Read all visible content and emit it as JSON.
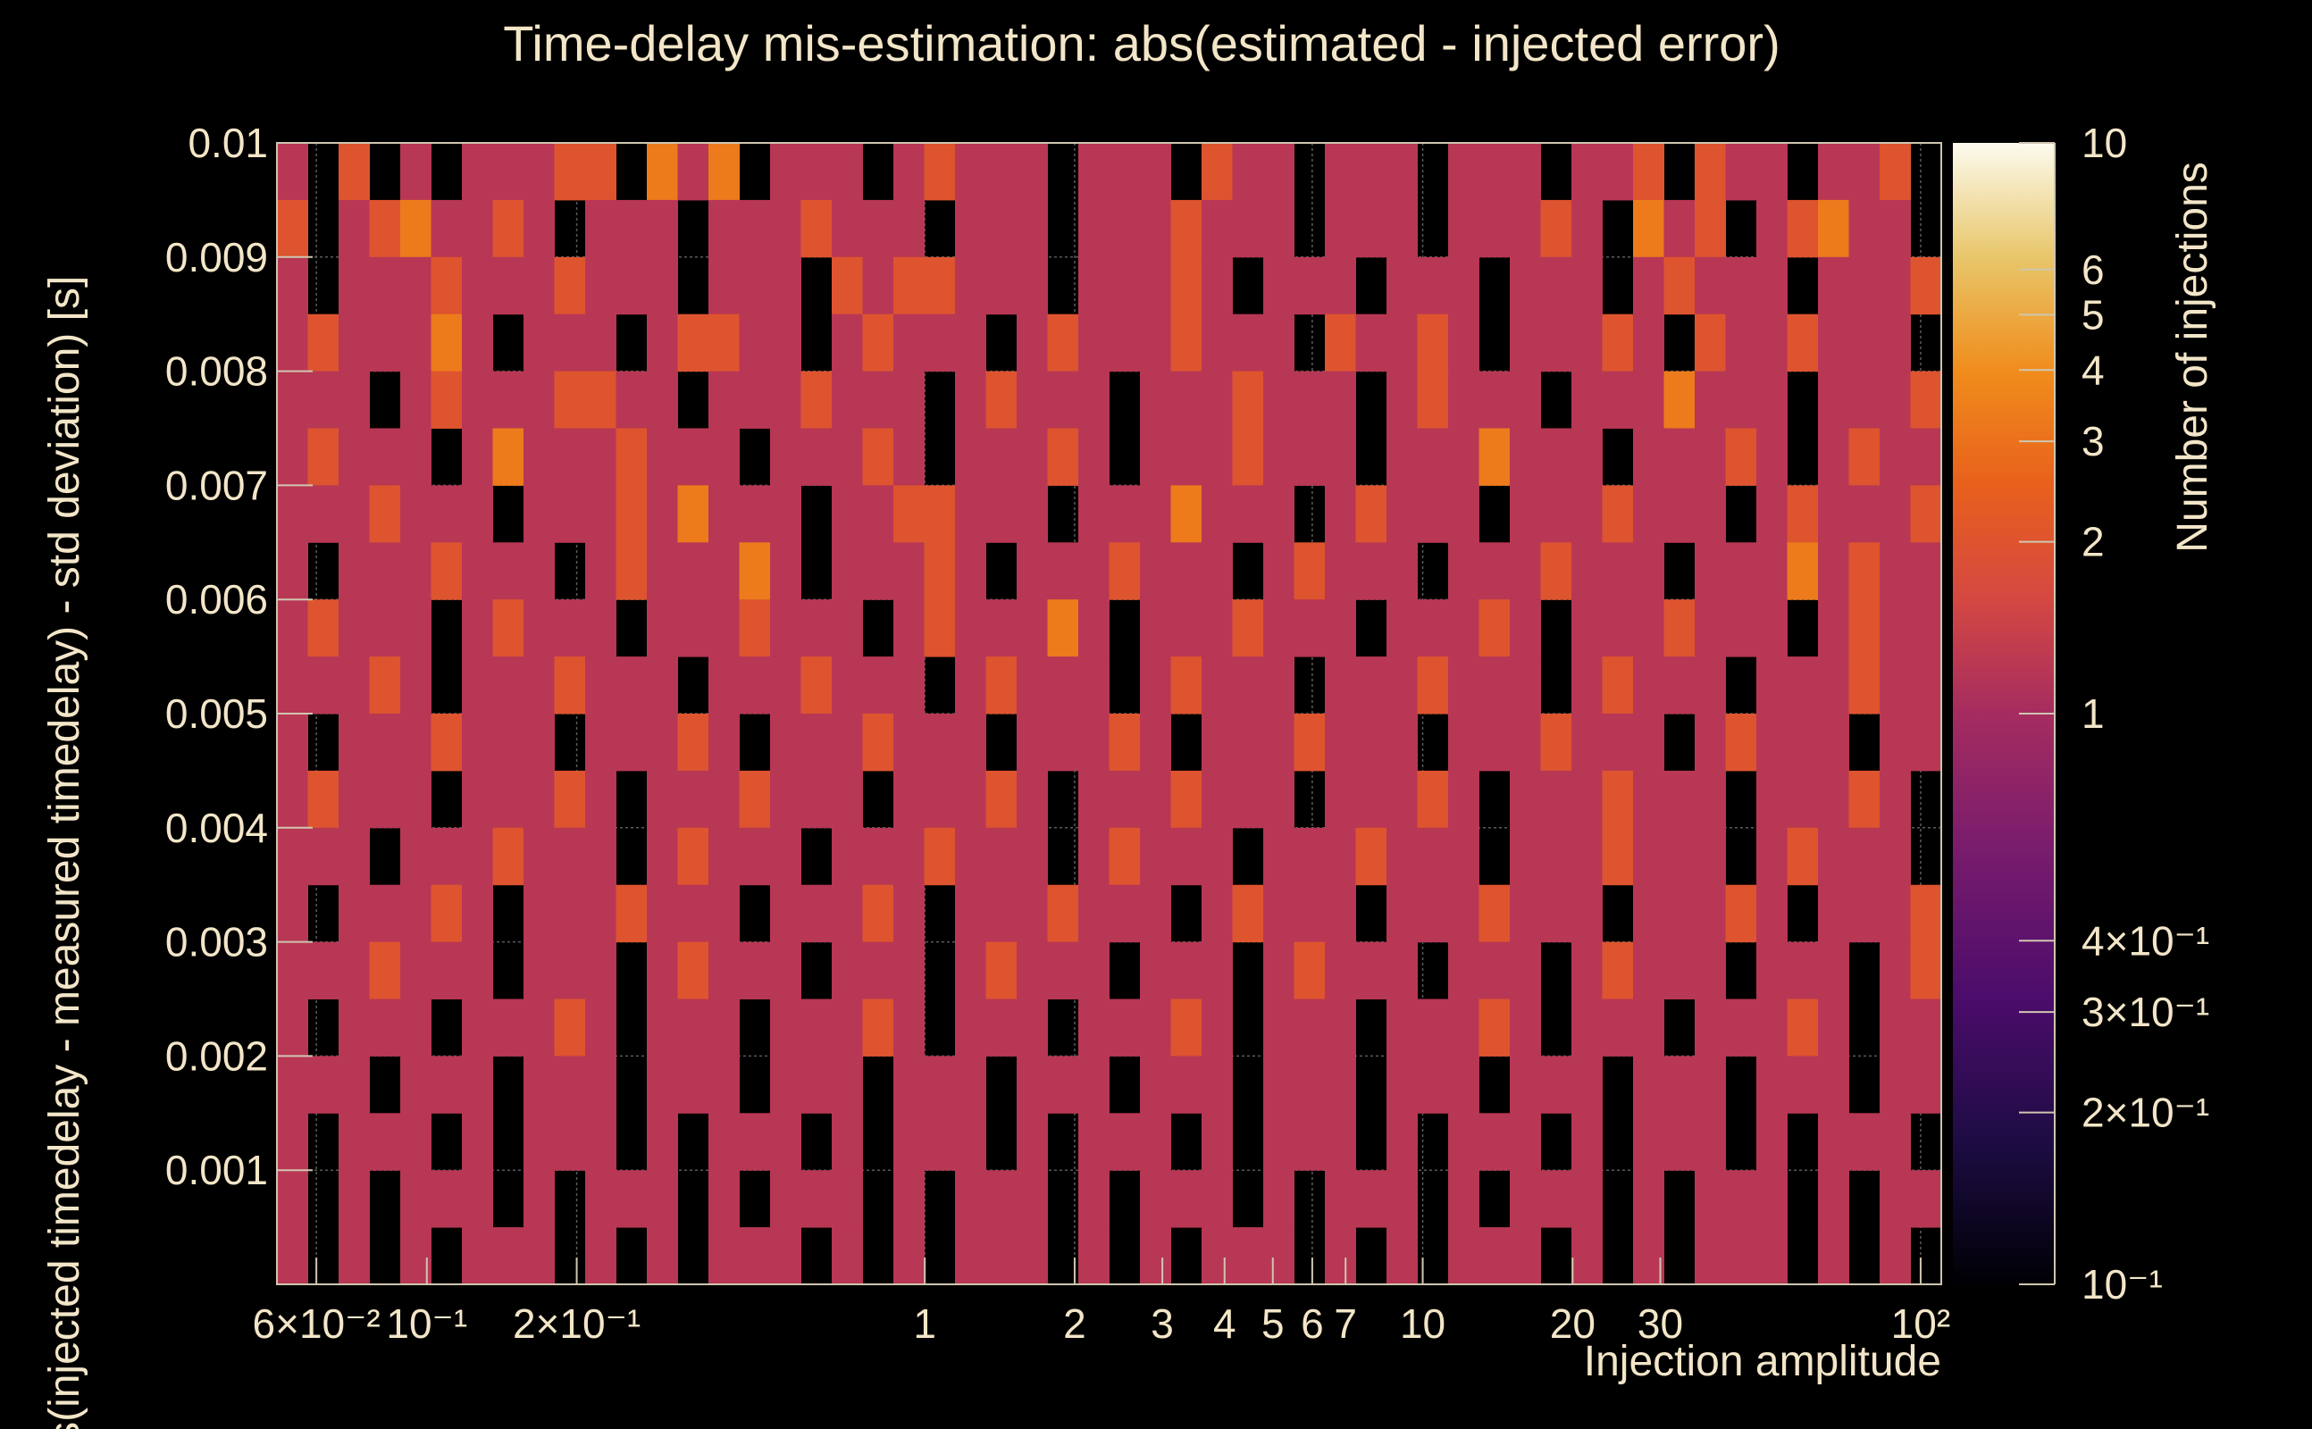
{
  "chart_data": {
    "type": "heatmap",
    "title": "Time-delay mis-estimation: abs(estimated - injected error)",
    "xlabel": "Injection amplitude",
    "ylabel": "abs(injected timedelay - measured timedelay) - std deviation) [s]",
    "zlabel": "Number of injections",
    "x_scale": "log",
    "xlim": [
      0.05,
      110
    ],
    "ylim": [
      0,
      0.01
    ],
    "z_scale": "log",
    "zlim": [
      0.1,
      10
    ],
    "x_ticks": [
      {
        "value": 0.06,
        "label": "6×10⁻²"
      },
      {
        "value": 0.1,
        "label": "10⁻¹"
      },
      {
        "value": 0.2,
        "label": "2×10⁻¹"
      },
      {
        "value": 1,
        "label": "1"
      },
      {
        "value": 2,
        "label": "2"
      },
      {
        "value": 3,
        "label": "3"
      },
      {
        "value": 4,
        "label": "4"
      },
      {
        "value": 5,
        "label": "5"
      },
      {
        "value": 6,
        "label": "6"
      },
      {
        "value": 7,
        "label": "7"
      },
      {
        "value": 10,
        "label": "10"
      },
      {
        "value": 20,
        "label": "20"
      },
      {
        "value": 30,
        "label": "30"
      },
      {
        "value": 100,
        "label": "10²"
      }
    ],
    "y_ticks": [
      {
        "value": 0.001,
        "label": "0.001"
      },
      {
        "value": 0.002,
        "label": "0.002"
      },
      {
        "value": 0.003,
        "label": "0.003"
      },
      {
        "value": 0.004,
        "label": "0.004"
      },
      {
        "value": 0.005,
        "label": "0.005"
      },
      {
        "value": 0.006,
        "label": "0.006"
      },
      {
        "value": 0.007,
        "label": "0.007"
      },
      {
        "value": 0.008,
        "label": "0.008"
      },
      {
        "value": 0.009,
        "label": "0.009"
      },
      {
        "value": 0.01,
        "label": "0.01"
      }
    ],
    "z_ticks": [
      {
        "value": 10,
        "label": "10"
      },
      {
        "value": 6,
        "label": "6"
      },
      {
        "value": 5,
        "label": "5"
      },
      {
        "value": 4,
        "label": "4"
      },
      {
        "value": 3,
        "label": "3"
      },
      {
        "value": 2,
        "label": "2"
      },
      {
        "value": 1,
        "label": "1"
      },
      {
        "value": 0.4,
        "label": "4×10⁻¹"
      },
      {
        "value": 0.3,
        "label": "3×10⁻¹"
      },
      {
        "value": 0.2,
        "label": "2×10⁻¹"
      },
      {
        "value": 0.1,
        "label": "10⁻¹"
      }
    ],
    "grid": true,
    "colormap": "inferno",
    "x_bins": 54,
    "y_bins_main": 20,
    "cells_rle": [
      "1,0,2,0,1,0,1,1,1,2,2,0,3,1,3,0,1,1,1,0,1,2,1,1,1,0,1,1,1,0,2,1,1,0,1,1,1,0,1,1,1,0,1,1,2,0,2,1,1,0,1,1,2,0",
      "2,0,1,2,3,1,1,2,1,0,1,1,1,0,1,1,1,2,1,1,1,0,1,1,1,0,1,1,1,2,1,1,1,0,1,1,1,0,1,1,1,2,1,0,3,1,2,0,1,2,3,1,1,0",
      "1,0,1,1,1,2,1,1,1,2,1,1,1,0,1,1,1,0,2,1,2,2,1,1,1,0,1,1,1,2,1,0,1,1,1,0,1,1,1,0,1,1,1,0,1,2,1,1,1,0,1,1,1,2",
      "1,2,1,1,1,3,1,0,1,1,1,0,1,2,2,1,1,0,1,2,1,1,1,0,1,2,1,1,1,2,1,1,1,0,2,1,1,2,1,0,1,1,1,2,1,0,2,1,1,2,1,1,1,0",
      "1,1,1,0,1,2,1,1,1,2,2,1,1,0,1,1,1,2,1,1,1,0,1,2,1,1,1,0,1,1,1,2,1,1,1,0,1,2,1,1,1,0,1,1,1,3,1,1,1,0,1,1,1,2",
      "1,2,1,1,1,0,1,3,1,1,1,2,1,1,1,0,1,1,1,2,1,0,1,1,1,2,1,0,1,1,1,2,1,1,1,0,1,1,1,3,1,1,1,0,1,1,1,2,1,0,1,2,1,1",
      "1,1,1,2,1,1,1,0,1,1,1,2,1,3,1,1,1,0,1,1,2,2,1,1,1,0,1,1,1,3,1,1,1,0,1,2,1,1,1,0,1,1,1,2,1,1,1,0,1,2,1,1,1,2",
      "1,0,1,1,1,2,1,1,1,0,1,2,1,1,1,3,1,0,1,1,1,2,1,0,1,1,1,2,1,1,1,0,1,2,1,1,1,0,1,1,1,2,1,1,1,0,1,1,1,3,1,2,1,1",
      "1,2,1,1,1,0,1,2,1,1,1,0,1,1,1,2,1,1,1,0,1,2,1,1,1,3,1,0,1,1,1,2,1,1,1,0,1,1,1,2,1,0,1,1,1,2,1,1,1,0,1,2,1,1",
      "1,1,1,2,1,0,1,1,1,2,1,1,1,0,1,1,1,2,1,1,1,0,1,2,1,1,1,0,1,2,1,1,1,0,1,1,1,2,1,1,1,0,1,2,1,1,1,0,1,1,1,2,1,1",
      "1,0,1,1,1,2,1,1,1,0,1,1,1,2,1,0,1,1,1,2,1,1,1,0,1,1,1,2,1,0,1,1,1,2,1,1,1,0,1,1,1,2,1,1,1,0,1,2,1,1,1,0,1,1",
      "1,2,1,1,1,0,1,1,1,2,1,0,1,1,1,2,1,1,1,0,1,1,1,2,1,0,1,1,1,2,1,1,1,0,1,1,1,2,1,0,1,1,1,2,1,1,1,0,1,1,1,2,1,0",
      "1,1,1,0,1,1,1,2,1,1,1,0,1,2,1,1,1,0,1,1,1,2,1,1,1,0,1,2,1,1,1,0,1,1,1,2,1,1,1,0,1,1,1,2,1,1,1,0,1,2,1,1,1,0",
      "1,0,1,1,1,2,1,0,1,1,1,2,1,1,1,0,1,1,1,2,1,0,1,1,1,2,1,1,1,0,1,2,1,1,1,0,1,1,1,2,1,1,1,0,1,1,1,2,1,0,1,1,1,2",
      "1,1,1,2,1,1,1,0,1,1,1,0,1,2,1,1,1,0,1,1,1,0,1,2,1,1,1,0,1,1,1,0,1,2,1,1,1,0,1,1,1,0,1,2,1,1,1,0,1,1,1,0,1,2",
      "1,0,1,1,1,0,1,1,1,2,1,0,1,1,1,0,1,1,1,2,1,0,1,1,1,0,1,1,1,2,1,0,1,1,1,0,1,1,1,2,1,0,1,1,1,0,1,1,1,2,1,0,1,1",
      "1,1,1,0,1,1,1,0,1,1,1,0,1,1,1,0,1,1,1,0,1,1,1,0,1,1,1,0,1,1,1,0,1,1,1,0,1,1,1,0,1,1,1,0,1,1,1,0,1,1,1,0,1,1",
      "1,0,1,1,1,0,1,0,1,1,1,0,1,0,1,1,1,0,1,0,1,1,1,0,1,0,1,1,1,0,1,0,1,1,1,0,1,0,1,1,1,0,1,0,1,1,1,0,1,0,1,1,1,0",
      "1,0,1,0,1,1,1,0,1,0,1,1,1,0,1,0,1,1,1,0,1,0,1,1,1,0,1,0,1,1,1,0,1,0,1,1,1,0,1,0,1,1,1,0,1,0,1,1,1,0,1,0,1,1",
      "1,0,1,0,1,0,1,1,1,0,1,0,1,0,1,1,1,0,1,0,1,0,1,1,1,0,1,0,1,0,1,1,1,0,1,0,1,0,1,1,1,0,1,0,1,0,1,1,1,0,1,0,1,0"
    ],
    "level_values": {
      "0": 0,
      "1": 1,
      "2": 2,
      "3": 3
    }
  }
}
